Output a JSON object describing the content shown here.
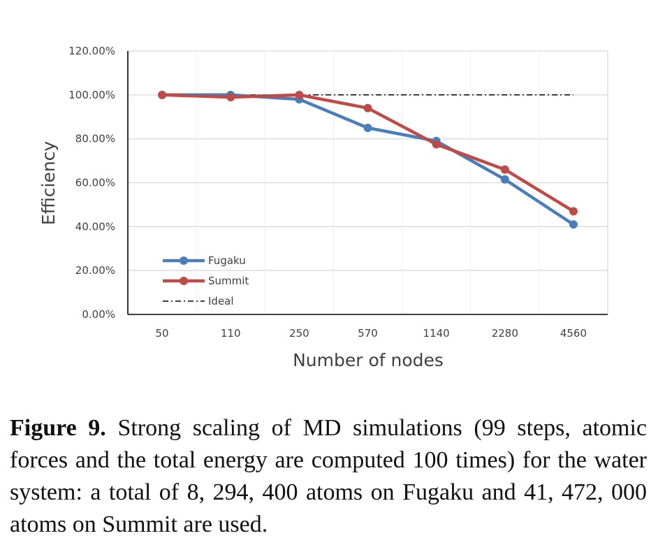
{
  "chart_data": {
    "type": "line",
    "title": "",
    "xlabel": "Number of nodes",
    "ylabel": "Efficiency",
    "categories": [
      "50",
      "110",
      "250",
      "570",
      "1140",
      "2280",
      "4560"
    ],
    "y_ticks": [
      "0.00%",
      "20.00%",
      "40.00%",
      "60.00%",
      "80.00%",
      "100.00%",
      "120.00%"
    ],
    "ylim": [
      0,
      120
    ],
    "grid": "horizontal",
    "legend_position": "bottom-left",
    "series": [
      {
        "name": "Fugaku",
        "color": "#4a7ebb",
        "style": "solid-markers",
        "values": [
          100,
          100,
          98,
          85,
          79,
          61.5,
          41
        ]
      },
      {
        "name": "Summit",
        "color": "#be4b48",
        "style": "solid-markers",
        "values": [
          100,
          99,
          100,
          94,
          77.5,
          66,
          47
        ]
      },
      {
        "name": "Ideal",
        "color": "#000000",
        "style": "dash-dot",
        "values": [
          100,
          100,
          100,
          100,
          100,
          100,
          100
        ]
      }
    ]
  },
  "caption": {
    "label": "Figure 9.",
    "text": "Strong scaling of MD simulations (99 steps, atomic forces and the total energy are computed 100 times) for the water system: a total of 8, 294, 400 atoms on Fugaku and 41, 472, 000 atoms on Summit are used."
  }
}
